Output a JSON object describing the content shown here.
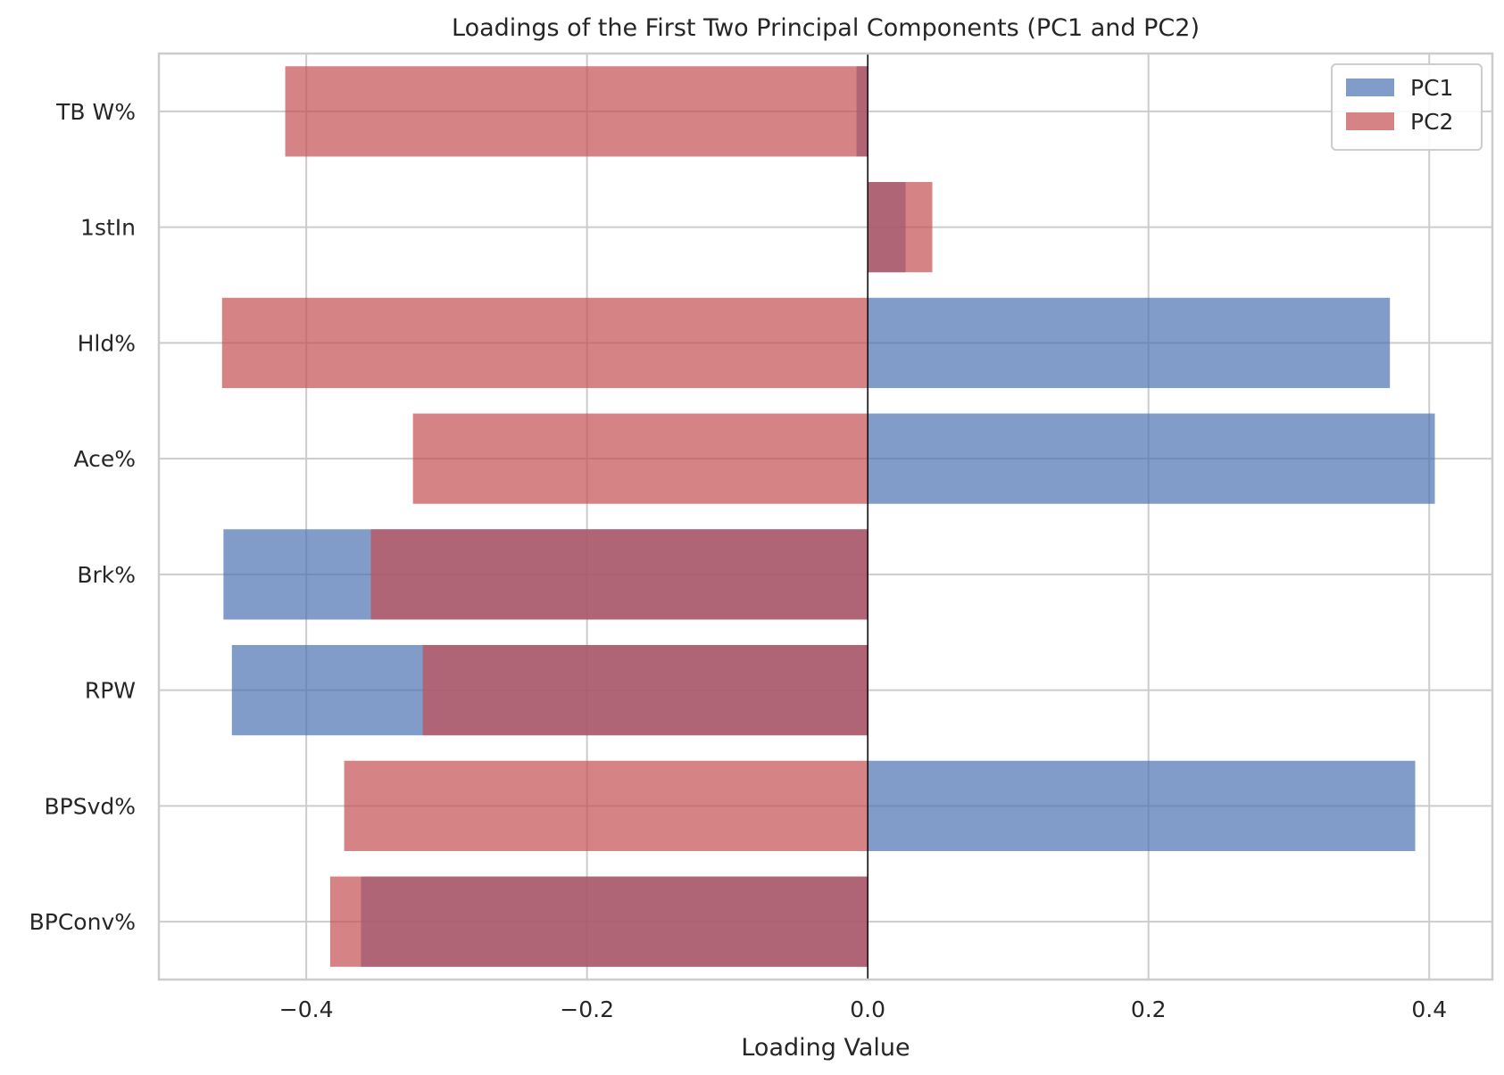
{
  "chart_data": {
    "type": "bar",
    "orientation": "horizontal",
    "title": "Loadings of the First Two Principal Components (PC1 and PC2)",
    "xlabel": "Loading Value",
    "ylabel": "",
    "xlim": [
      -0.505,
      0.445
    ],
    "xticks": [
      -0.4,
      -0.2,
      0.0,
      0.2,
      0.4
    ],
    "xtick_labels": [
      "−0.4",
      "−0.2",
      "0.0",
      "0.2",
      "0.4"
    ],
    "categories": [
      "TB W%",
      "1stIn",
      "Hld%",
      "Ace%",
      "Brk%",
      "RPW",
      "BPSvd%",
      "BPConv%"
    ],
    "series": [
      {
        "name": "PC1",
        "color": "#4c72b0",
        "values": [
          -0.008,
          0.027,
          0.372,
          0.404,
          -0.459,
          -0.453,
          0.39,
          -0.361
        ]
      },
      {
        "name": "PC2",
        "color": "#c44e52",
        "values": [
          -0.415,
          0.046,
          -0.46,
          -0.324,
          -0.354,
          -0.317,
          -0.373,
          -0.383
        ]
      }
    ],
    "bar_alpha": 0.7,
    "grid": true,
    "zero_line": true,
    "legend_position": "upper right"
  }
}
